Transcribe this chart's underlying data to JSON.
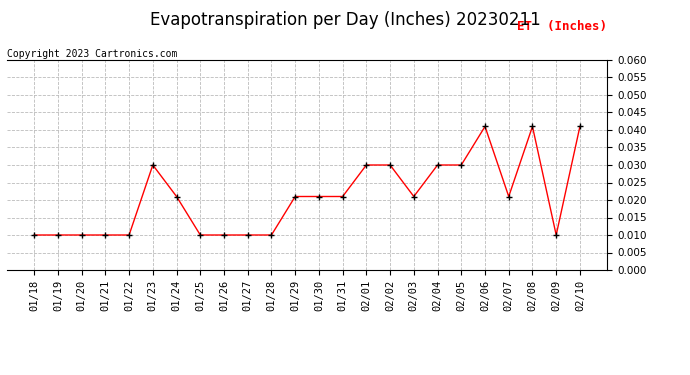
{
  "title": "Evapotranspiration per Day (Inches) 20230211",
  "copyright": "Copyright 2023 Cartronics.com",
  "legend_label": "ET  (Inches)",
  "legend_color": "red",
  "dates": [
    "01/18",
    "01/19",
    "01/20",
    "01/21",
    "01/22",
    "01/23",
    "01/24",
    "01/25",
    "01/26",
    "01/27",
    "01/28",
    "01/29",
    "01/30",
    "01/31",
    "02/01",
    "02/02",
    "02/03",
    "02/04",
    "02/05",
    "02/06",
    "02/07",
    "02/08",
    "02/09",
    "02/10"
  ],
  "values": [
    0.01,
    0.01,
    0.01,
    0.01,
    0.01,
    0.03,
    0.021,
    0.01,
    0.01,
    0.01,
    0.01,
    0.021,
    0.021,
    0.021,
    0.03,
    0.03,
    0.021,
    0.03,
    0.03,
    0.041,
    0.021,
    0.041,
    0.01,
    0.041
  ],
  "line_color": "red",
  "marker_color": "black",
  "ylim": [
    0.0,
    0.06
  ],
  "yticks": [
    0.0,
    0.005,
    0.01,
    0.015,
    0.02,
    0.025,
    0.03,
    0.035,
    0.04,
    0.045,
    0.05,
    0.055,
    0.06
  ],
  "grid_color": "#bbbbbb",
  "grid_style": "--",
  "background_color": "#ffffff",
  "title_fontsize": 12,
  "tick_fontsize": 7.5,
  "copyright_fontsize": 7,
  "legend_fontsize": 9
}
